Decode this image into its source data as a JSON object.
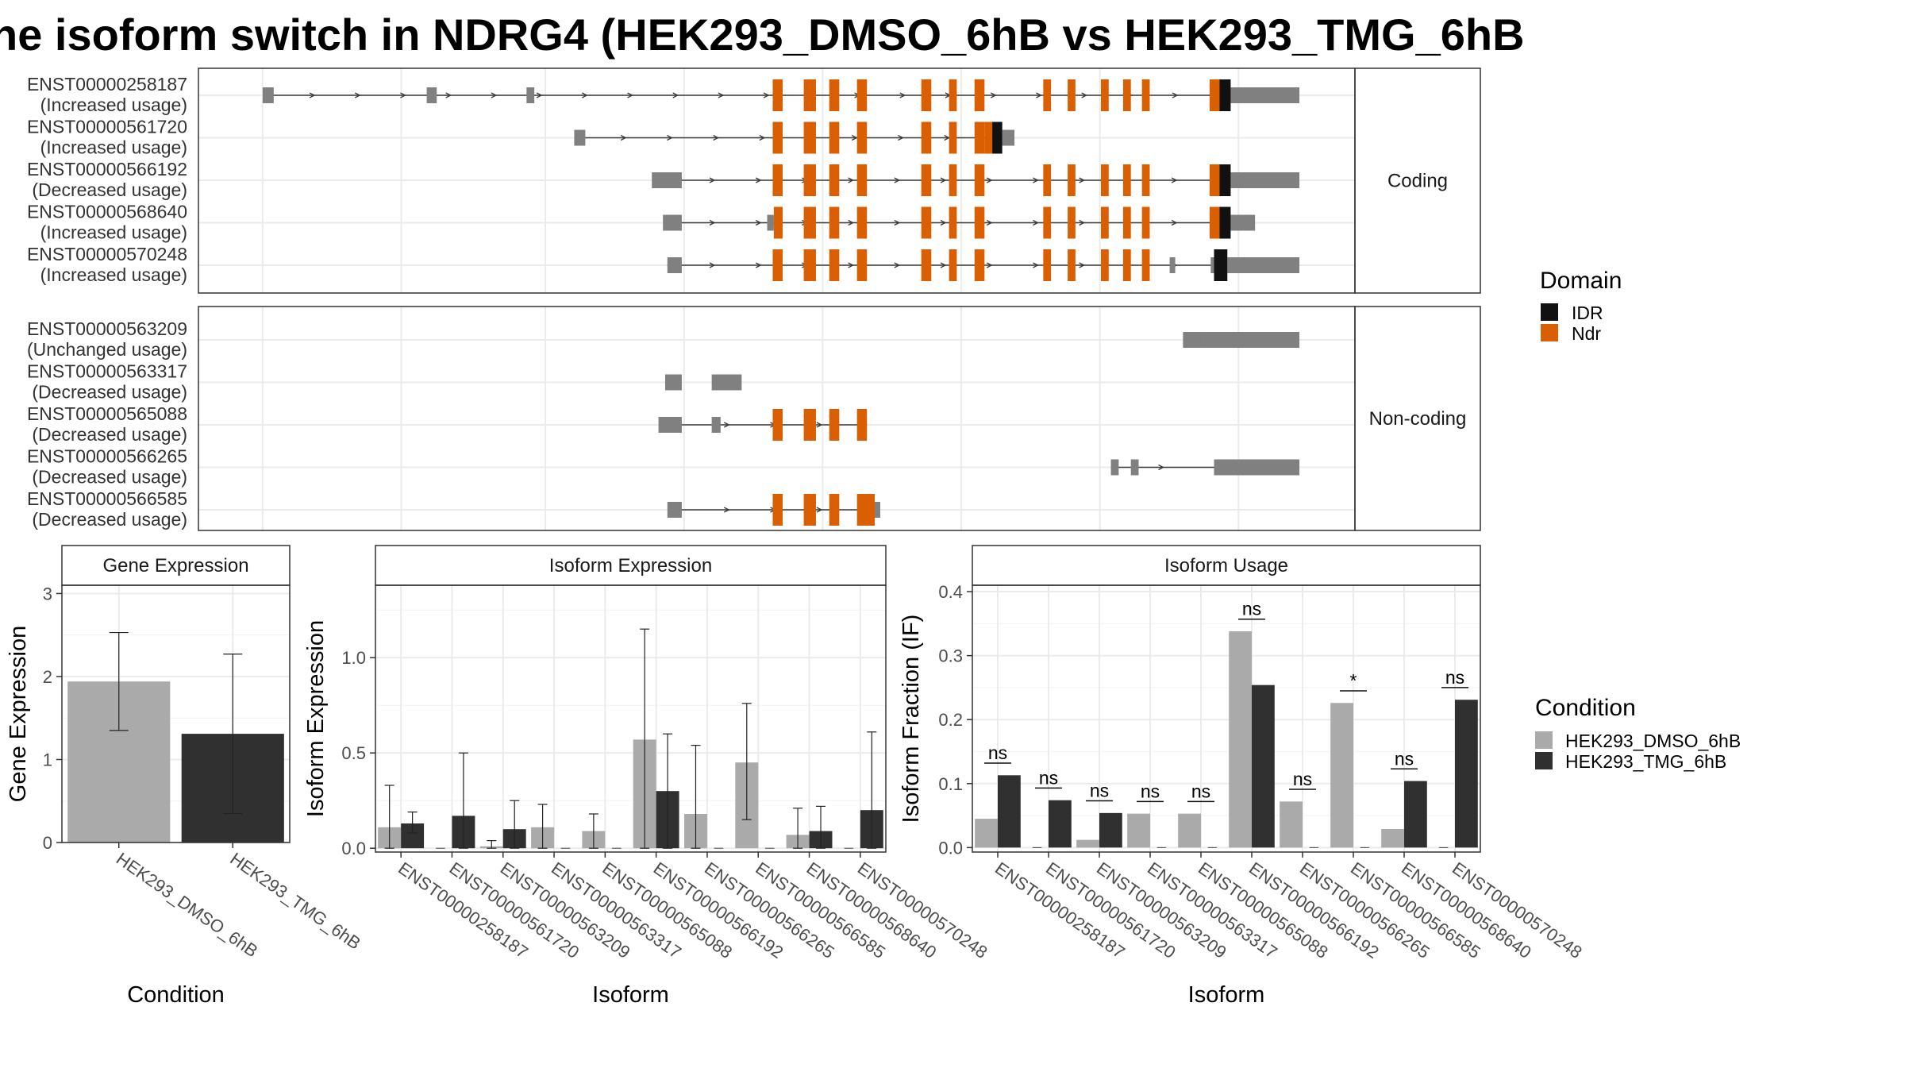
{
  "page": {
    "title": "he isoform switch in NDRG4 (HEK293_DMSO_6hB vs HEK293_TMG_6hB"
  },
  "colors": {
    "intron": "#3a3a3a",
    "utr": "#808080",
    "ndr": "#d95f02",
    "idr": "#111111",
    "dmso": "#aaaaaa",
    "tmg": "#303030",
    "grid": "#ebebeb",
    "panel_border": "#333333",
    "strip_bg": "#ffffff"
  },
  "chart_data": [
    {
      "type": "transcript_structure",
      "facets": [
        "Coding",
        "Non-coding"
      ],
      "x_range": [
        0,
        100
      ],
      "legend": {
        "title": "Domain",
        "entries": [
          {
            "label": "IDR",
            "color": "#111111"
          },
          {
            "label": "Ndr",
            "color": "#d95f02"
          }
        ]
      },
      "transcripts": [
        {
          "id": "ENST00000258187",
          "status": "(Increased usage)",
          "facet": "Coding",
          "intron": [
            5,
            91
          ],
          "utr": [
            [
              4.5,
              5.5
            ],
            [
              19.3,
              20.2
            ],
            [
              28.3,
              29.0
            ],
            [
              90,
              91
            ],
            [
              91.8,
              98
            ]
          ],
          "ndr": [
            [
              50.5,
              51.4
            ],
            [
              53.3,
              54.4
            ],
            [
              55.6,
              56.5
            ],
            [
              58.1,
              59.0
            ],
            [
              63.9,
              64.8
            ],
            [
              66.4,
              67.1
            ],
            [
              68.7,
              69.6
            ],
            [
              74.9,
              75.6
            ],
            [
              77.1,
              77.8
            ],
            [
              80.1,
              80.8
            ],
            [
              82.1,
              82.8
            ],
            [
              83.8,
              84.5
            ],
            [
              89.9,
              90.8
            ]
          ],
          "idr": [
            [
              90.8,
              91.8
            ]
          ]
        },
        {
          "id": "ENST00000561720",
          "status": "(Increased usage)",
          "facet": "Coding",
          "intron": [
            33,
            70.5
          ],
          "utr": [
            [
              32.6,
              33.6
            ],
            [
              71.2,
              72.3
            ]
          ],
          "ndr": [
            [
              50.5,
              51.4
            ],
            [
              53.3,
              54.4
            ],
            [
              55.6,
              56.5
            ],
            [
              58.1,
              59.0
            ],
            [
              63.9,
              64.8
            ],
            [
              66.4,
              67.1
            ],
            [
              68.7,
              69.6
            ],
            [
              69.6,
              70.3
            ]
          ],
          "idr": [
            [
              70.3,
              71.2
            ]
          ]
        },
        {
          "id": "ENST00000566192",
          "status": "(Decreased usage)",
          "facet": "Coding",
          "intron": [
            41,
            91
          ],
          "utr": [
            [
              39.6,
              42.3
            ],
            [
              90,
              91
            ],
            [
              91.8,
              98
            ]
          ],
          "ndr": [
            [
              50.5,
              51.4
            ],
            [
              53.3,
              54.4
            ],
            [
              55.6,
              56.5
            ],
            [
              58.1,
              59.0
            ],
            [
              63.9,
              64.8
            ],
            [
              66.4,
              67.1
            ],
            [
              68.7,
              69.6
            ],
            [
              74.9,
              75.6
            ],
            [
              77.1,
              77.8
            ],
            [
              80.1,
              80.8
            ],
            [
              82.1,
              82.8
            ],
            [
              83.8,
              84.5
            ],
            [
              89.9,
              90.8
            ]
          ],
          "idr": [
            [
              90.8,
              91.8
            ]
          ]
        },
        {
          "id": "ENST00000568640",
          "status": "(Increased usage)",
          "facet": "Coding",
          "intron": [
            41,
            91
          ],
          "utr": [
            [
              40.6,
              42.3
            ],
            [
              50,
              50.6
            ],
            [
              90,
              91
            ],
            [
              91.8,
              94.0
            ]
          ],
          "ndr": [
            [
              50.6,
              51.4
            ],
            [
              53.3,
              54.4
            ],
            [
              55.6,
              56.5
            ],
            [
              58.1,
              59.0
            ],
            [
              63.9,
              64.8
            ],
            [
              66.4,
              67.1
            ],
            [
              68.7,
              69.6
            ],
            [
              74.9,
              75.6
            ],
            [
              77.1,
              77.8
            ],
            [
              80.1,
              80.8
            ],
            [
              82.1,
              82.8
            ],
            [
              83.8,
              84.5
            ],
            [
              89.9,
              90.8
            ]
          ],
          "idr": [
            [
              90.8,
              91.8
            ]
          ]
        },
        {
          "id": "ENST00000570248",
          "status": "(Increased usage)",
          "facet": "Coding",
          "intron": [
            41,
            91
          ],
          "utr": [
            [
              41.0,
              42.3
            ],
            [
              86.3,
              86.8
            ],
            [
              90,
              90.3
            ],
            [
              91.5,
              98
            ]
          ],
          "ndr": [
            [
              50.5,
              51.4
            ],
            [
              53.3,
              54.4
            ],
            [
              55.6,
              56.5
            ],
            [
              58.1,
              59.0
            ],
            [
              63.9,
              64.8
            ],
            [
              66.4,
              67.1
            ],
            [
              68.7,
              69.6
            ],
            [
              74.9,
              75.6
            ],
            [
              77.1,
              77.8
            ],
            [
              80.1,
              80.8
            ],
            [
              82.1,
              82.8
            ],
            [
              83.8,
              84.5
            ]
          ],
          "idr": [
            [
              90.3,
              91.5
            ]
          ]
        },
        {
          "id": "ENST00000563209",
          "status": "(Unchanged usage)",
          "facet": "Non-coding",
          "intron": [
            0,
            0
          ],
          "utr": [
            [
              87.5,
              89.3
            ],
            [
              89.3,
              98
            ]
          ],
          "ndr": [],
          "idr": []
        },
        {
          "id": "ENST00000563317",
          "status": "(Decreased usage)",
          "facet": "Non-coding",
          "intron": [
            0,
            0
          ],
          "utr": [
            [
              40.8,
              42.3
            ],
            [
              45.0,
              47.7
            ]
          ],
          "ndr": [],
          "idr": []
        },
        {
          "id": "ENST00000565088",
          "status": "(Decreased usage)",
          "facet": "Non-coding",
          "intron": [
            42.3,
            59
          ],
          "utr": [
            [
              40.2,
              42.3
            ],
            [
              45.0,
              45.8
            ]
          ],
          "ndr": [
            [
              50.5,
              51.4
            ],
            [
              53.3,
              54.4
            ],
            [
              55.6,
              56.5
            ],
            [
              58.1,
              59.0
            ]
          ],
          "idr": []
        },
        {
          "id": "ENST00000566265",
          "status": "(Decreased usage)",
          "facet": "Non-coding",
          "intron": [
            81,
            90.3
          ],
          "utr": [
            [
              81.0,
              81.7
            ],
            [
              82.8,
              83.5
            ],
            [
              90.3,
              98
            ]
          ],
          "ndr": [],
          "idr": []
        },
        {
          "id": "ENST00000566585",
          "status": "(Decreased usage)",
          "facet": "Non-coding",
          "intron": [
            42.3,
            59
          ],
          "utr": [
            [
              41.0,
              42.3
            ],
            [
              59.7,
              60.2
            ]
          ],
          "ndr": [
            [
              50.5,
              51.4
            ],
            [
              53.3,
              54.4
            ],
            [
              55.6,
              56.5
            ],
            [
              58.1,
              59.7
            ]
          ],
          "idr": []
        }
      ]
    },
    {
      "type": "bar",
      "title": "Gene Expression",
      "xlabel": "Condition",
      "ylabel": "Gene Expression",
      "ylim": [
        0,
        3.1
      ],
      "yticks": [
        0,
        1,
        2,
        3
      ],
      "categories": [
        "HEK293_DMSO_6hB",
        "HEK293_TMG_6hB"
      ],
      "values": [
        1.94,
        1.31
      ],
      "error_low": [
        1.35,
        0.35
      ],
      "error_high": [
        2.53,
        2.27
      ]
    },
    {
      "type": "bar",
      "title": "Isoform Expression",
      "xlabel": "Isoform",
      "ylabel": "Isoform Expression",
      "ylim": [
        -0.02,
        1.38
      ],
      "yticks": [
        0.0,
        0.5,
        1.0
      ],
      "ytick_labels": [
        "0.0",
        "0.5",
        "1.0"
      ],
      "categories": [
        "ENST00000258187",
        "ENST00000561720",
        "ENST00000563209",
        "ENST00000563317",
        "ENST00000565088",
        "ENST00000566192",
        "ENST00000566265",
        "ENST00000566585",
        "ENST00000568640",
        "ENST00000570248"
      ],
      "series": [
        {
          "name": "HEK293_DMSO_6hB",
          "values": [
            0.11,
            0.0,
            0.01,
            0.11,
            0.09,
            0.57,
            0.18,
            0.45,
            0.07,
            0.0
          ],
          "error_low": [
            0.0,
            0.0,
            0.0,
            0.0,
            0.0,
            0.0,
            0.0,
            0.15,
            0.0,
            0.0
          ],
          "error_high": [
            0.33,
            0.0,
            0.04,
            0.23,
            0.18,
            1.15,
            0.54,
            0.76,
            0.21,
            0.0
          ]
        },
        {
          "name": "HEK293_TMG_6hB",
          "values": [
            0.13,
            0.17,
            0.1,
            0.0,
            0.0,
            0.3,
            0.0,
            0.0,
            0.09,
            0.2
          ],
          "error_low": [
            0.08,
            0.0,
            0.0,
            0.0,
            0.0,
            0.0,
            0.0,
            0.0,
            0.0,
            0.0
          ],
          "error_high": [
            0.19,
            0.5,
            0.25,
            0.0,
            0.0,
            0.6,
            0.0,
            0.0,
            0.22,
            0.61
          ]
        }
      ]
    },
    {
      "type": "bar",
      "title": "Isoform Usage",
      "xlabel": "Isoform",
      "ylabel": "Isoform Fraction (IF)",
      "ylim": [
        -0.007,
        0.41
      ],
      "yticks": [
        0.0,
        0.1,
        0.2,
        0.3,
        0.4
      ],
      "ytick_labels": [
        "0.0",
        "0.1",
        "0.2",
        "0.3",
        "0.4"
      ],
      "categories": [
        "ENST00000258187",
        "ENST00000561720",
        "ENST00000563209",
        "ENST00000563317",
        "ENST00000565088",
        "ENST00000566192",
        "ENST00000566265",
        "ENST00000566585",
        "ENST00000568640",
        "ENST00000570248"
      ],
      "series": [
        {
          "name": "HEK293_DMSO_6hB",
          "values": [
            0.045,
            0.0,
            0.012,
            0.053,
            0.053,
            0.338,
            0.072,
            0.226,
            0.029,
            0.0
          ]
        },
        {
          "name": "HEK293_TMG_6hB",
          "values": [
            0.113,
            0.074,
            0.054,
            0.0,
            0.0,
            0.254,
            0.0,
            0.0,
            0.104,
            0.231
          ]
        }
      ],
      "annotations": [
        {
          "category": "ENST00000258187",
          "label": "ns",
          "y": 0.132
        },
        {
          "category": "ENST00000561720",
          "label": "ns",
          "y": 0.093
        },
        {
          "category": "ENST00000563209",
          "label": "ns",
          "y": 0.073
        },
        {
          "category": "ENST00000563317",
          "label": "ns",
          "y": 0.072
        },
        {
          "category": "ENST00000565088",
          "label": "ns",
          "y": 0.072
        },
        {
          "category": "ENST00000566192",
          "label": "ns",
          "y": 0.357
        },
        {
          "category": "ENST00000566265",
          "label": "ns",
          "y": 0.091
        },
        {
          "category": "ENST00000566585",
          "label": "*",
          "y": 0.245
        },
        {
          "category": "ENST00000568640",
          "label": "ns",
          "y": 0.123
        },
        {
          "category": "ENST00000570248",
          "label": "ns",
          "y": 0.25
        }
      ],
      "legend": {
        "title": "Condition",
        "entries": [
          {
            "label": "HEK293_DMSO_6hB",
            "color": "#aaaaaa"
          },
          {
            "label": "HEK293_TMG_6hB",
            "color": "#303030"
          }
        ]
      }
    }
  ]
}
